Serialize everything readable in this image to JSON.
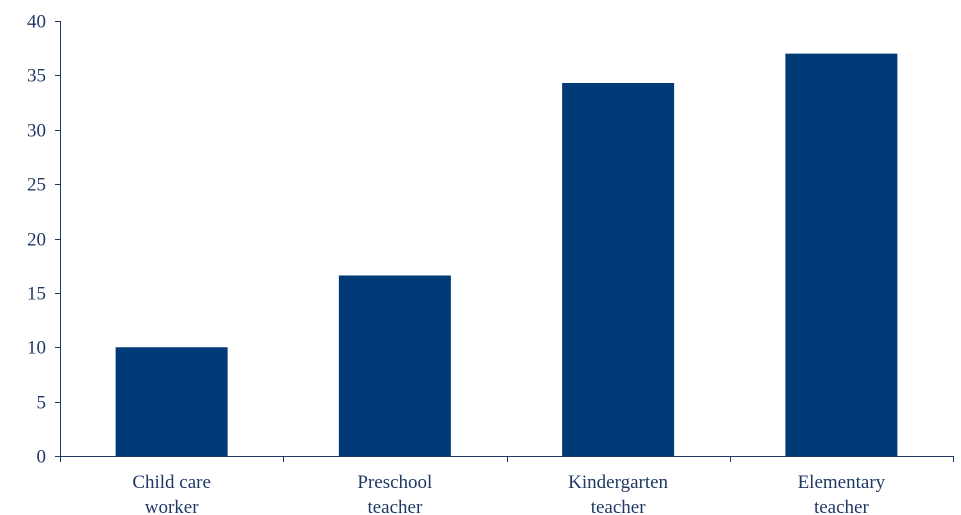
{
  "chart_data": {
    "type": "bar",
    "categories": [
      [
        "Child care",
        "worker"
      ],
      [
        "Preschool",
        "teacher"
      ],
      [
        "Kindergarten",
        "teacher"
      ],
      [
        "Elementary",
        "teacher"
      ]
    ],
    "values": [
      10.0,
      16.6,
      34.3,
      37.0
    ],
    "title": "",
    "xlabel": "",
    "ylabel": "",
    "ylim": [
      0,
      40
    ],
    "yticks": [
      0,
      5,
      10,
      15,
      20,
      25,
      30,
      35,
      40
    ],
    "grid": false,
    "bar_color": "#003b78",
    "axis_color": "#1f3864"
  }
}
